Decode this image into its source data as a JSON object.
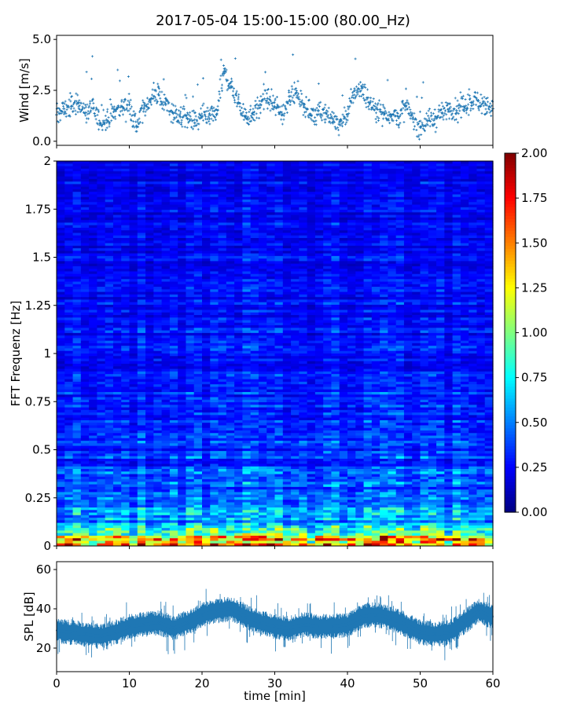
{
  "title": "2017-05-04 15:00-15:00 (80.00_Hz)",
  "chart_data": [
    {
      "type": "scatter",
      "panel": "wind",
      "ylabel": "Wind [m/s]",
      "xlim": [
        0,
        60
      ],
      "ylim": [
        -0.2,
        5.2
      ],
      "yticks": [
        "0.0",
        "2.5",
        "5.0"
      ],
      "series": [
        {
          "marker": "+",
          "color": "#1f77b4",
          "x": [
            0,
            1,
            2,
            3,
            4,
            5,
            6,
            7,
            8,
            9,
            10,
            11,
            12,
            13,
            14,
            15,
            16,
            17,
            18,
            19,
            20,
            21,
            22,
            23,
            24,
            25,
            26,
            27,
            28,
            29,
            30,
            31,
            32,
            33,
            34,
            35,
            36,
            37,
            38,
            39,
            40,
            41,
            42,
            43,
            44,
            45,
            46,
            47,
            48,
            49,
            50,
            51,
            52,
            53,
            54,
            55,
            56,
            57,
            58,
            59,
            60
          ],
          "values": [
            1.3,
            1.6,
            1.7,
            1.9,
            1.4,
            1.6,
            0.9,
            1.0,
            1.5,
            1.7,
            1.8,
            0.7,
            1.6,
            2.1,
            2.3,
            1.8,
            1.4,
            1.2,
            1.1,
            0.9,
            1.2,
            1.1,
            1.3,
            3.4,
            2.7,
            1.9,
            1.2,
            1.4,
            1.8,
            2.1,
            1.7,
            1.3,
            2.2,
            2.4,
            1.8,
            1.3,
            1.5,
            1.4,
            1.1,
            0.8,
            1.3,
            2.5,
            2.6,
            1.9,
            1.6,
            1.4,
            1.3,
            1.2,
            1.7,
            1.1,
            0.7,
            1.0,
            1.1,
            1.4,
            1.6,
            1.5,
            1.7,
            1.9,
            2.0,
            1.8,
            1.6
          ]
        }
      ]
    },
    {
      "type": "heatmap",
      "panel": "spectrogram",
      "ylabel": "FFT Frequenz [Hz]",
      "xlim": [
        0,
        60
      ],
      "ylim": [
        0,
        2
      ],
      "yticks": [
        "0",
        "0.25",
        "0.5",
        "0.75",
        "1",
        "1.25",
        "1.5",
        "1.75",
        "2"
      ],
      "colormap": "jet",
      "colorbar": {
        "range": [
          0,
          2
        ],
        "ticks": [
          "0.00",
          "0.25",
          "0.50",
          "0.75",
          "1.00",
          "1.25",
          "1.50",
          "1.75",
          "2.00"
        ]
      },
      "typical_intensity": [
        {
          "freq_hz": 0.01,
          "value": 1.9
        },
        {
          "freq_hz": 0.03,
          "value": 1.4
        },
        {
          "freq_hz": 0.06,
          "value": 0.9
        },
        {
          "freq_hz": 0.12,
          "value": 0.55
        },
        {
          "freq_hz": 0.25,
          "value": 0.4
        },
        {
          "freq_hz": 0.5,
          "value": 0.33
        },
        {
          "freq_hz": 1.0,
          "value": 0.27
        },
        {
          "freq_hz": 1.5,
          "value": 0.24
        },
        {
          "freq_hz": 2.0,
          "value": 0.22
        }
      ]
    },
    {
      "type": "line",
      "panel": "spl",
      "ylabel": "SPL [dB]",
      "xlabel": "time [min]",
      "xlim": [
        0,
        60
      ],
      "ylim": [
        8,
        64
      ],
      "yticks": [
        "20",
        "40",
        "60"
      ],
      "xticks": [
        "0",
        "10",
        "20",
        "30",
        "40",
        "50",
        "60"
      ],
      "series": [
        {
          "color": "#1f77b4",
          "x": [
            0,
            2,
            4,
            6,
            8,
            10,
            12,
            14,
            16,
            18,
            20,
            22,
            24,
            26,
            28,
            30,
            32,
            34,
            36,
            38,
            40,
            42,
            44,
            46,
            48,
            50,
            52,
            54,
            56,
            58,
            60
          ],
          "values": [
            29,
            28,
            27,
            26,
            28,
            31,
            32,
            33,
            30,
            33,
            37,
            39,
            40,
            36,
            33,
            31,
            30,
            32,
            31,
            31,
            32,
            36,
            37,
            35,
            32,
            28,
            27,
            28,
            33,
            39,
            36
          ]
        }
      ]
    }
  ]
}
